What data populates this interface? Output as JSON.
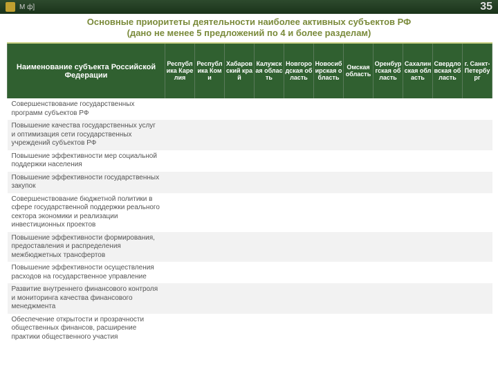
{
  "header": {
    "logo_text": "М ф]",
    "page_number": "35"
  },
  "title": {
    "line1": "Основные приоритеты деятельности наиболее активных субъектов РФ",
    "line2": "(дано не менее 5 предложений по 4 и более разделам)"
  },
  "table": {
    "name_header": "Наименование субъекта Российской Федерации",
    "columns": [
      "Республика Карелия",
      "Республика Коми",
      "Хабаровский край",
      "Калужская область",
      "Новгородская область",
      "Новосибирская область",
      "Омская область",
      "Оренбургская область",
      "Сахалинская область",
      "Свердловская область",
      "г. Санкт-Петербург"
    ],
    "rows": [
      "Совершенствование государственных программ субъектов РФ",
      "Повышение качества государственных услуг и оптимизация сети государственных учреждений субъектов РФ",
      "Повышение эффективности мер социальной поддержки населения",
      "Повышение эффективности государственных закупок",
      "Совершенствование бюджетной политики в сфере государственной поддержки реального сектора экономики и реализации инвестиционных проектов",
      "Повышение эффективности формирования, предоставления и распределения межбюджетных трансфертов",
      "Повышение эффективности осуществления расходов на государственное управление",
      "Развитие внутреннего финансового контроля и мониторинга качества финансового менеджмента",
      "Обеспечение открытости и прозрачности общественных финансов, расширение практики общественного участия"
    ]
  },
  "style": {
    "header_bg": "#306030",
    "accent": "#7a8a3a",
    "row_alt": "#f2f2f2"
  }
}
